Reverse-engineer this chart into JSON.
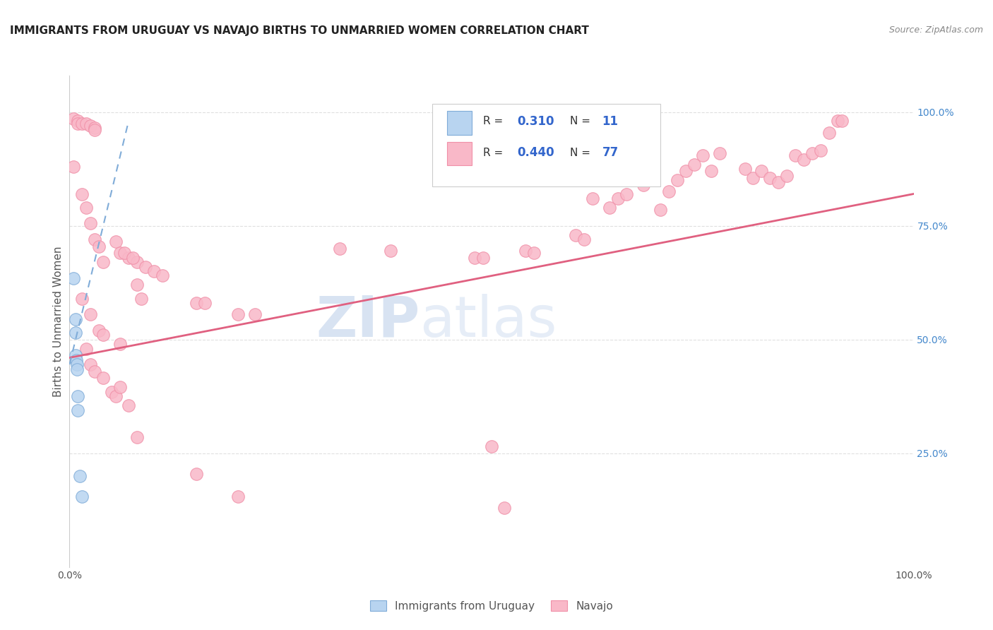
{
  "title": "IMMIGRANTS FROM URUGUAY VS NAVAJO BIRTHS TO UNMARRIED WOMEN CORRELATION CHART",
  "source": "Source: ZipAtlas.com",
  "ylabel": "Births to Unmarried Women",
  "watermark_part1": "ZIP",
  "watermark_part2": "atlas",
  "background_color": "#ffffff",
  "grid_color": "#e0e0e0",
  "blue_points": [
    [
      0.005,
      0.635
    ],
    [
      0.007,
      0.545
    ],
    [
      0.007,
      0.515
    ],
    [
      0.007,
      0.465
    ],
    [
      0.008,
      0.455
    ],
    [
      0.009,
      0.445
    ],
    [
      0.009,
      0.435
    ],
    [
      0.01,
      0.375
    ],
    [
      0.01,
      0.345
    ],
    [
      0.012,
      0.2
    ],
    [
      0.015,
      0.155
    ]
  ],
  "pink_points": [
    [
      0.005,
      0.985
    ],
    [
      0.01,
      0.98
    ],
    [
      0.01,
      0.975
    ],
    [
      0.015,
      0.975
    ],
    [
      0.02,
      0.975
    ],
    [
      0.025,
      0.97
    ],
    [
      0.03,
      0.965
    ],
    [
      0.03,
      0.96
    ],
    [
      0.005,
      0.88
    ],
    [
      0.015,
      0.82
    ],
    [
      0.02,
      0.79
    ],
    [
      0.025,
      0.755
    ],
    [
      0.03,
      0.72
    ],
    [
      0.035,
      0.705
    ],
    [
      0.04,
      0.67
    ],
    [
      0.055,
      0.715
    ],
    [
      0.06,
      0.69
    ],
    [
      0.07,
      0.68
    ],
    [
      0.08,
      0.67
    ],
    [
      0.09,
      0.66
    ],
    [
      0.1,
      0.65
    ],
    [
      0.11,
      0.64
    ],
    [
      0.015,
      0.59
    ],
    [
      0.025,
      0.555
    ],
    [
      0.035,
      0.52
    ],
    [
      0.04,
      0.51
    ],
    [
      0.06,
      0.49
    ],
    [
      0.065,
      0.69
    ],
    [
      0.075,
      0.68
    ],
    [
      0.08,
      0.62
    ],
    [
      0.085,
      0.59
    ],
    [
      0.15,
      0.58
    ],
    [
      0.16,
      0.58
    ],
    [
      0.2,
      0.555
    ],
    [
      0.22,
      0.555
    ],
    [
      0.32,
      0.7
    ],
    [
      0.38,
      0.695
    ],
    [
      0.48,
      0.68
    ],
    [
      0.49,
      0.68
    ],
    [
      0.54,
      0.695
    ],
    [
      0.55,
      0.69
    ],
    [
      0.6,
      0.73
    ],
    [
      0.61,
      0.72
    ],
    [
      0.62,
      0.81
    ],
    [
      0.64,
      0.79
    ],
    [
      0.65,
      0.81
    ],
    [
      0.66,
      0.82
    ],
    [
      0.68,
      0.84
    ],
    [
      0.7,
      0.785
    ],
    [
      0.71,
      0.825
    ],
    [
      0.72,
      0.85
    ],
    [
      0.73,
      0.87
    ],
    [
      0.74,
      0.885
    ],
    [
      0.75,
      0.905
    ],
    [
      0.76,
      0.87
    ],
    [
      0.77,
      0.91
    ],
    [
      0.8,
      0.875
    ],
    [
      0.81,
      0.855
    ],
    [
      0.82,
      0.87
    ],
    [
      0.83,
      0.855
    ],
    [
      0.84,
      0.845
    ],
    [
      0.85,
      0.86
    ],
    [
      0.86,
      0.905
    ],
    [
      0.87,
      0.895
    ],
    [
      0.88,
      0.91
    ],
    [
      0.89,
      0.915
    ],
    [
      0.9,
      0.955
    ],
    [
      0.91,
      0.98
    ],
    [
      0.915,
      0.98
    ],
    [
      0.02,
      0.48
    ],
    [
      0.025,
      0.445
    ],
    [
      0.03,
      0.43
    ],
    [
      0.04,
      0.415
    ],
    [
      0.05,
      0.385
    ],
    [
      0.055,
      0.375
    ],
    [
      0.06,
      0.395
    ],
    [
      0.07,
      0.355
    ],
    [
      0.08,
      0.285
    ],
    [
      0.5,
      0.265
    ],
    [
      0.515,
      0.13
    ],
    [
      0.15,
      0.205
    ],
    [
      0.2,
      0.155
    ]
  ],
  "blue_trend": [
    0.0,
    0.07,
    0.445,
    0.98
  ],
  "pink_trend_x": [
    0.0,
    1.0
  ],
  "pink_trend_y": [
    0.46,
    0.82
  ],
  "xlim": [
    0.0,
    1.0
  ],
  "ylim": [
    0.0,
    1.08
  ]
}
